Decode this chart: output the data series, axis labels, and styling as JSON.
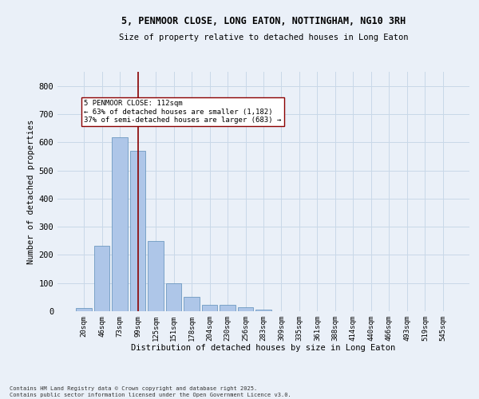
{
  "title_line1": "5, PENMOOR CLOSE, LONG EATON, NOTTINGHAM, NG10 3RH",
  "title_line2": "Size of property relative to detached houses in Long Eaton",
  "xlabel": "Distribution of detached houses by size in Long Eaton",
  "ylabel": "Number of detached properties",
  "categories": [
    "20sqm",
    "46sqm",
    "73sqm",
    "99sqm",
    "125sqm",
    "151sqm",
    "178sqm",
    "204sqm",
    "230sqm",
    "256sqm",
    "283sqm",
    "309sqm",
    "335sqm",
    "361sqm",
    "388sqm",
    "414sqm",
    "440sqm",
    "466sqm",
    "493sqm",
    "519sqm",
    "545sqm"
  ],
  "values": [
    10,
    233,
    618,
    570,
    249,
    100,
    52,
    22,
    22,
    14,
    5,
    0,
    0,
    0,
    0,
    0,
    0,
    0,
    0,
    0,
    0
  ],
  "bar_color": "#aec6e8",
  "bar_edge_color": "#5b8db8",
  "grid_color": "#c8d8e8",
  "background_color": "#eaf0f8",
  "vline_x": 3.0,
  "vline_color": "#8b0000",
  "annotation_title": "5 PENMOOR CLOSE: 112sqm",
  "annotation_line2": "← 63% of detached houses are smaller (1,182)",
  "annotation_line3": "37% of semi-detached houses are larger (683) →",
  "annotation_box_color": "#ffffff",
  "annotation_box_edge": "#8b0000",
  "footer_line1": "Contains HM Land Registry data © Crown copyright and database right 2025.",
  "footer_line2": "Contains public sector information licensed under the Open Government Licence v3.0.",
  "ylim": [
    0,
    850
  ],
  "yticks": [
    0,
    100,
    200,
    300,
    400,
    500,
    600,
    700,
    800
  ]
}
